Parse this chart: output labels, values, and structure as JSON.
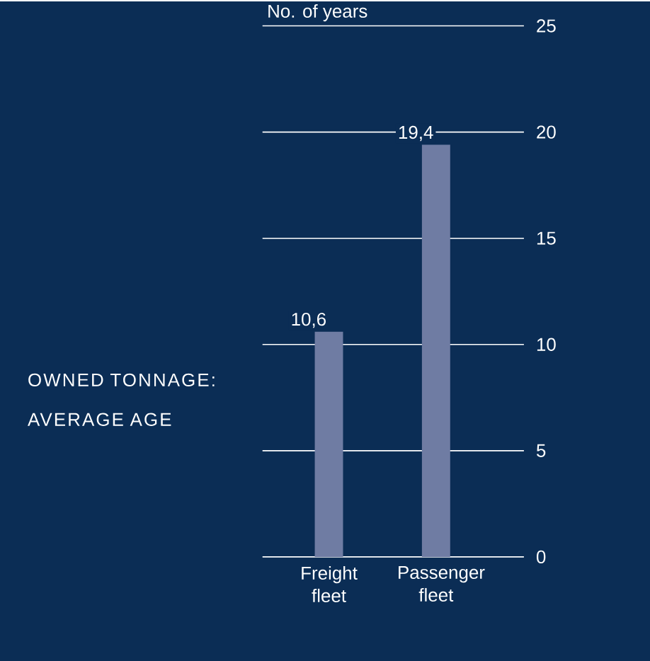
{
  "chart_data": {
    "type": "bar",
    "title": "OWNED TONNAGE: AVERAGE AGE",
    "ylabel": "No. of years",
    "categories": [
      "Freight fleet",
      "Passenger fleet"
    ],
    "values": [
      10.6,
      19.4
    ],
    "value_labels": [
      "10,6",
      "19,4"
    ],
    "color": "#6f7ca3",
    "ylim": [
      0,
      25
    ],
    "yticks": [
      0,
      5,
      10,
      15,
      20,
      25
    ],
    "grid": "y"
  }
}
